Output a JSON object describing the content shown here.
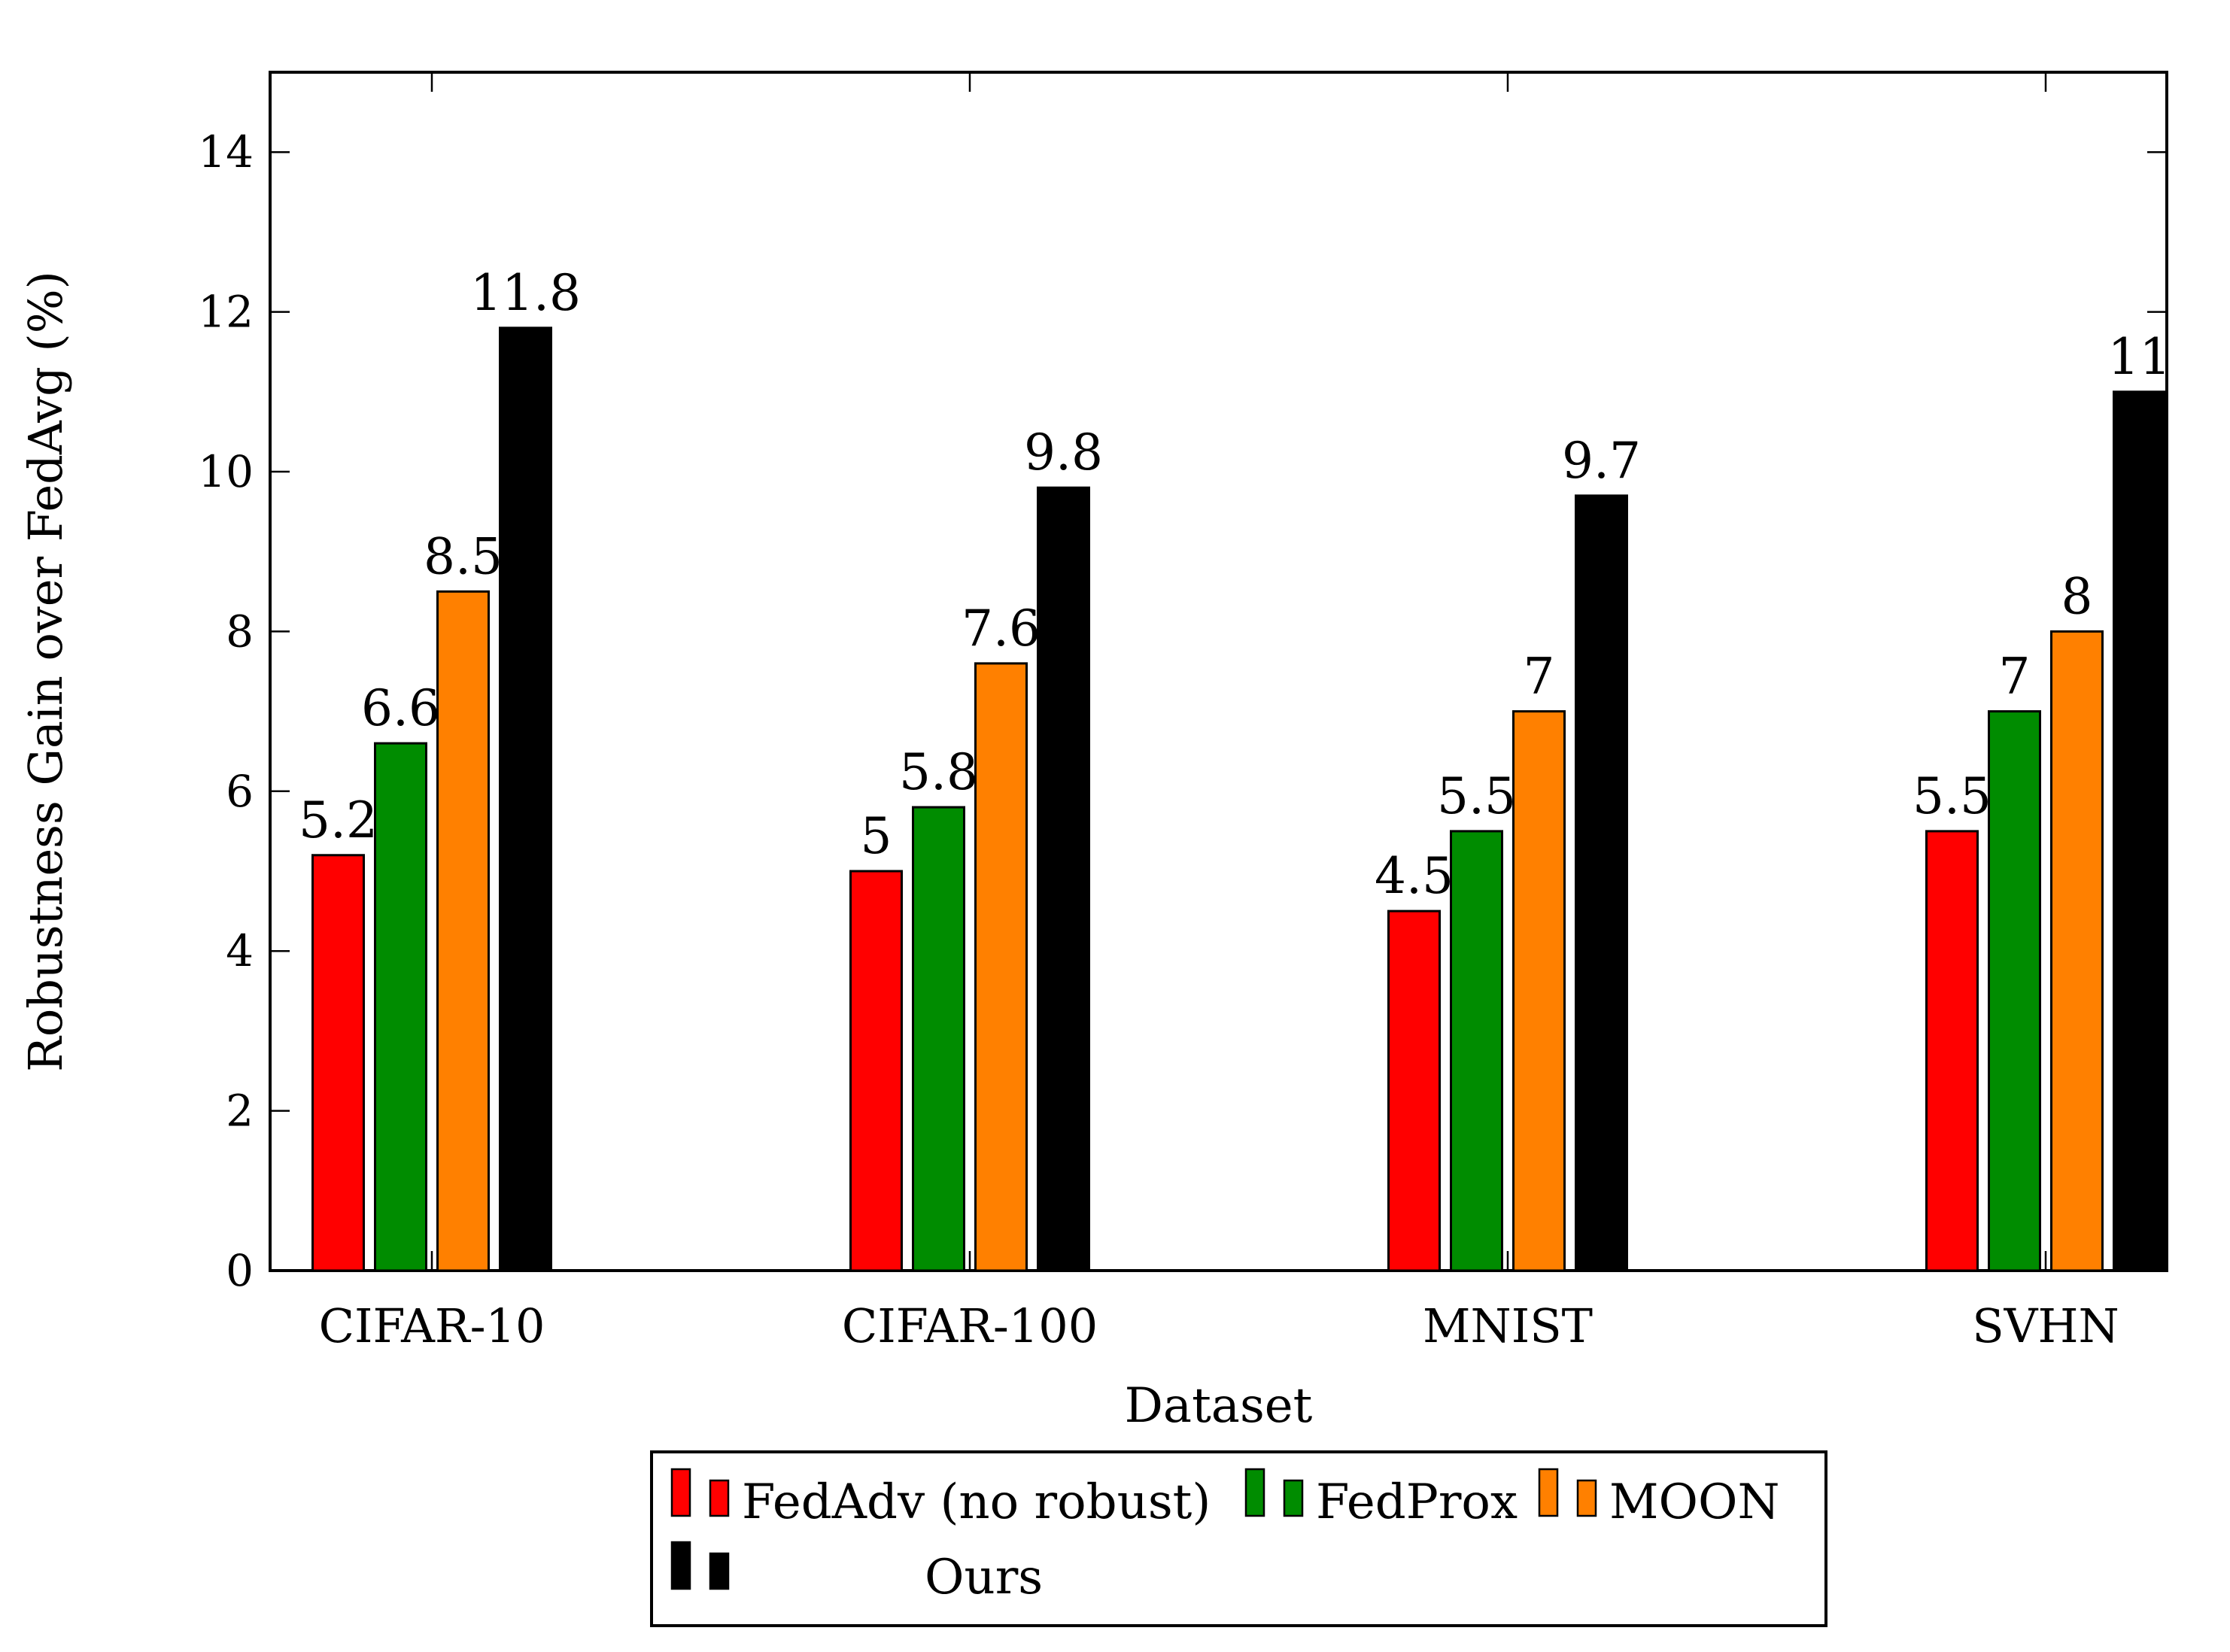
{
  "chart_data": {
    "type": "bar",
    "title": "",
    "xlabel": "Dataset",
    "ylabel": "Robustness Gain over FedAvg (%)",
    "ylim": [
      0,
      15
    ],
    "yticks": [
      0,
      2,
      4,
      6,
      8,
      10,
      12,
      14
    ],
    "categories": [
      "CIFAR-10",
      "CIFAR-100",
      "MNIST",
      "SVHN"
    ],
    "series": [
      {
        "name": "FedAdv (no robust)",
        "color": "#ff0000",
        "values": [
          5.2,
          5,
          4.5,
          5.5
        ],
        "labels": [
          "5.2",
          "5",
          "4.5",
          "5.5"
        ]
      },
      {
        "name": "FedProx",
        "color": "#008c00",
        "values": [
          6.6,
          5.8,
          5.5,
          7
        ],
        "labels": [
          "6.6",
          "5.8",
          "5.5",
          "7"
        ]
      },
      {
        "name": "MOON",
        "color": "#ff8000",
        "values": [
          8.5,
          7.6,
          7,
          8
        ],
        "labels": [
          "8.5",
          "7.6",
          "7",
          "8"
        ]
      },
      {
        "name": "Ours",
        "color": "#000000",
        "values": [
          11.8,
          9.8,
          9.7,
          11
        ],
        "labels": [
          "11.8",
          "9.8",
          "9.7",
          "11"
        ]
      }
    ],
    "legend_position": "bottom-center",
    "grid": false
  }
}
